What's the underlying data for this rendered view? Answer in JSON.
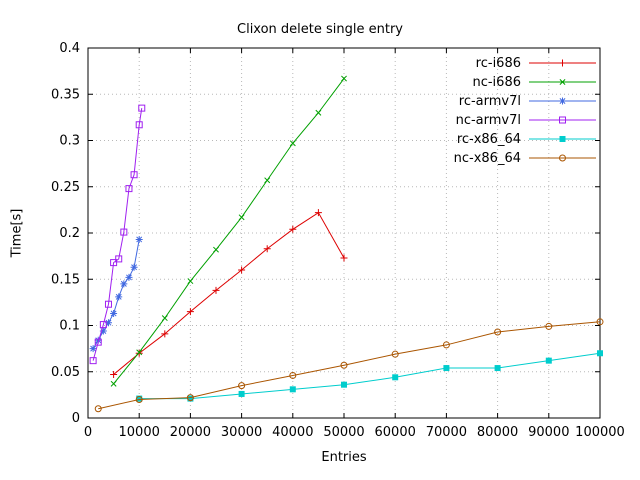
{
  "chart_data": {
    "type": "line",
    "title": "Clixon delete single entry",
    "xlabel": "Entries",
    "ylabel": "Time[s]",
    "xlim": [
      0,
      100000
    ],
    "ylim": [
      0,
      0.4
    ],
    "xticks": [
      0,
      10000,
      20000,
      30000,
      40000,
      50000,
      60000,
      70000,
      80000,
      90000,
      100000
    ],
    "xtick_labels": [
      "0",
      "10000",
      "20000",
      "30000",
      "40000",
      "50000",
      "60000",
      "70000",
      "80000",
      "90000",
      "100000"
    ],
    "yticks": [
      0,
      0.05,
      0.1,
      0.15,
      0.2,
      0.25,
      0.3,
      0.35,
      0.4
    ],
    "ytick_labels": [
      "0",
      "0.05",
      "0.1",
      "0.15",
      "0.2",
      "0.25",
      "0.3",
      "0.35",
      "0.4"
    ],
    "grid": true,
    "grid_color": "#b8b8b8",
    "legend_position": "top-right",
    "series": [
      {
        "name": "rc-i686",
        "color": "#dd0000",
        "marker": "plus",
        "x": [
          5000,
          10000,
          15000,
          20000,
          25000,
          30000,
          35000,
          40000,
          45000,
          50000
        ],
        "y": [
          0.047,
          0.07,
          0.091,
          0.115,
          0.138,
          0.16,
          0.183,
          0.204,
          0.222,
          0.173
        ]
      },
      {
        "name": "nc-i686",
        "color": "#00a000",
        "marker": "cross",
        "x": [
          5000,
          10000,
          15000,
          20000,
          25000,
          30000,
          35000,
          40000,
          45000,
          50000
        ],
        "y": [
          0.037,
          0.071,
          0.108,
          0.148,
          0.182,
          0.217,
          0.257,
          0.297,
          0.33,
          0.367
        ]
      },
      {
        "name": "rc-armv7l",
        "color": "#4169e1",
        "marker": "asterisk",
        "x": [
          1000,
          2000,
          3000,
          4000,
          5000,
          6000,
          7000,
          8000,
          9000,
          10000
        ],
        "y": [
          0.075,
          0.084,
          0.094,
          0.103,
          0.113,
          0.131,
          0.145,
          0.152,
          0.163,
          0.193
        ]
      },
      {
        "name": "nc-armv7l",
        "color": "#a020f0",
        "marker": "square-open",
        "x": [
          1000,
          2000,
          3000,
          4000,
          5000,
          6000,
          7000,
          8000,
          9000,
          10000,
          10500
        ],
        "y": [
          0.062,
          0.082,
          0.101,
          0.123,
          0.168,
          0.172,
          0.201,
          0.248,
          0.263,
          0.317,
          0.335
        ]
      },
      {
        "name": "rc-x86_64",
        "color": "#00cdcd",
        "marker": "square-filled",
        "x": [
          10000,
          20000,
          30000,
          40000,
          50000,
          60000,
          70000,
          80000,
          90000,
          100000
        ],
        "y": [
          0.021,
          0.021,
          0.026,
          0.031,
          0.036,
          0.044,
          0.054,
          0.054,
          0.062,
          0.07
        ]
      },
      {
        "name": "nc-x86_64",
        "color": "#aa5500",
        "marker": "circle-open",
        "x": [
          2000,
          10000,
          20000,
          30000,
          40000,
          50000,
          60000,
          70000,
          80000,
          90000,
          100000
        ],
        "y": [
          0.01,
          0.02,
          0.022,
          0.035,
          0.046,
          0.057,
          0.069,
          0.079,
          0.093,
          0.099,
          0.104
        ]
      }
    ]
  }
}
